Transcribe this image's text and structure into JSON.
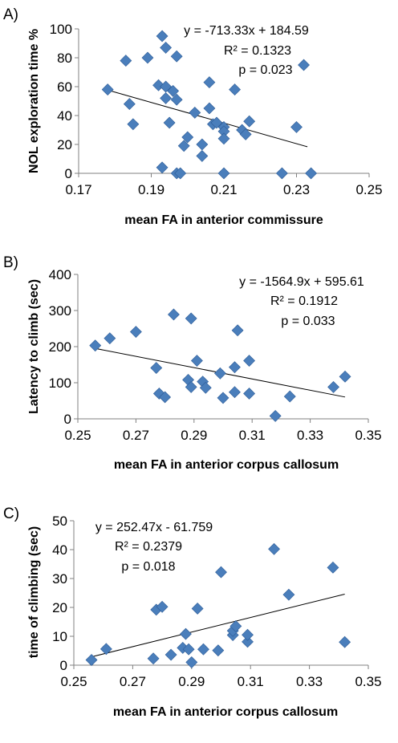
{
  "colors": {
    "marker": "#4a7ebb",
    "marker_stroke": "#2c5b96",
    "axis": "#808080",
    "trendline": "#000000",
    "text": "#000000"
  },
  "chart_data": [
    {
      "type": "scatter",
      "panel_label": "A)",
      "xlabel": "mean FA in anterior commissure",
      "ylabel": "NOL exploration time %",
      "xlim": [
        0.17,
        0.25
      ],
      "ylim": [
        0,
        100
      ],
      "xticks": [
        0.17,
        0.19,
        0.21,
        0.23,
        0.25
      ],
      "yticks": [
        0,
        20,
        40,
        60,
        80,
        100
      ],
      "xtick_labels": [
        "0.17",
        "0.19",
        "0.21",
        "0.23",
        "0.25"
      ],
      "ytick_labels": [
        "0",
        "20",
        "40",
        "60",
        "80",
        "100"
      ],
      "grid": false,
      "annotations": [
        "y = -713.33x + 184.59",
        "R² = 0.1323",
        "p = 0.023"
      ],
      "trendline": {
        "slope": -713.33,
        "intercept": 184.59,
        "x_range": [
          0.178,
          0.233
        ]
      },
      "points": [
        {
          "x": 0.178,
          "y": 58
        },
        {
          "x": 0.183,
          "y": 78
        },
        {
          "x": 0.184,
          "y": 48
        },
        {
          "x": 0.185,
          "y": 34
        },
        {
          "x": 0.189,
          "y": 80
        },
        {
          "x": 0.192,
          "y": 61
        },
        {
          "x": 0.193,
          "y": 4
        },
        {
          "x": 0.193,
          "y": 95
        },
        {
          "x": 0.194,
          "y": 87
        },
        {
          "x": 0.194,
          "y": 60
        },
        {
          "x": 0.194,
          "y": 52
        },
        {
          "x": 0.195,
          "y": 35
        },
        {
          "x": 0.196,
          "y": 57
        },
        {
          "x": 0.197,
          "y": 81
        },
        {
          "x": 0.197,
          "y": 51
        },
        {
          "x": 0.197,
          "y": 0
        },
        {
          "x": 0.198,
          "y": 0
        },
        {
          "x": 0.199,
          "y": 19
        },
        {
          "x": 0.2,
          "y": 25
        },
        {
          "x": 0.202,
          "y": 42
        },
        {
          "x": 0.204,
          "y": 12
        },
        {
          "x": 0.204,
          "y": 20
        },
        {
          "x": 0.206,
          "y": 45
        },
        {
          "x": 0.206,
          "y": 63
        },
        {
          "x": 0.207,
          "y": 34
        },
        {
          "x": 0.208,
          "y": 35
        },
        {
          "x": 0.21,
          "y": 32
        },
        {
          "x": 0.21,
          "y": 29
        },
        {
          "x": 0.21,
          "y": 0
        },
        {
          "x": 0.21,
          "y": 24
        },
        {
          "x": 0.213,
          "y": 58
        },
        {
          "x": 0.215,
          "y": 30
        },
        {
          "x": 0.216,
          "y": 27
        },
        {
          "x": 0.217,
          "y": 36
        },
        {
          "x": 0.226,
          "y": 0
        },
        {
          "x": 0.23,
          "y": 32
        },
        {
          "x": 0.232,
          "y": 75
        },
        {
          "x": 0.234,
          "y": 0
        }
      ]
    },
    {
      "type": "scatter",
      "panel_label": "B)",
      "xlabel": "mean FA in anterior corpus callosum",
      "ylabel": "Latency to climb (sec)",
      "xlim": [
        0.25,
        0.35
      ],
      "ylim": [
        0,
        400
      ],
      "xticks": [
        0.25,
        0.27,
        0.29,
        0.31,
        0.33,
        0.35
      ],
      "yticks": [
        0,
        100,
        200,
        300,
        400
      ],
      "xtick_labels": [
        "0.25",
        "0.27",
        "0.29",
        "0.31",
        "0.33",
        "0.35"
      ],
      "ytick_labels": [
        "0",
        "100",
        "200",
        "300",
        "400"
      ],
      "grid": false,
      "annotations": [
        "y = -1564.9x + 595.61",
        "R² = 0.1912",
        "p = 0.033"
      ],
      "trendline": {
        "slope": -1564.9,
        "intercept": 595.61,
        "x_range": [
          0.256,
          0.342
        ]
      },
      "points": [
        {
          "x": 0.256,
          "y": 203
        },
        {
          "x": 0.261,
          "y": 223
        },
        {
          "x": 0.27,
          "y": 241
        },
        {
          "x": 0.277,
          "y": 141
        },
        {
          "x": 0.278,
          "y": 70
        },
        {
          "x": 0.28,
          "y": 60
        },
        {
          "x": 0.283,
          "y": 289
        },
        {
          "x": 0.288,
          "y": 108
        },
        {
          "x": 0.289,
          "y": 278
        },
        {
          "x": 0.289,
          "y": 88
        },
        {
          "x": 0.291,
          "y": 161
        },
        {
          "x": 0.293,
          "y": 103
        },
        {
          "x": 0.294,
          "y": 86
        },
        {
          "x": 0.299,
          "y": 126
        },
        {
          "x": 0.3,
          "y": 58
        },
        {
          "x": 0.304,
          "y": 143
        },
        {
          "x": 0.304,
          "y": 74
        },
        {
          "x": 0.305,
          "y": 245
        },
        {
          "x": 0.309,
          "y": 161
        },
        {
          "x": 0.309,
          "y": 70
        },
        {
          "x": 0.318,
          "y": 8
        },
        {
          "x": 0.323,
          "y": 62
        },
        {
          "x": 0.338,
          "y": 88
        },
        {
          "x": 0.342,
          "y": 117
        }
      ]
    },
    {
      "type": "scatter",
      "panel_label": "C)",
      "xlabel": "mean FA in anterior corpus callosum",
      "ylabel": "time of climbing (sec)",
      "xlim": [
        0.25,
        0.35
      ],
      "ylim": [
        0,
        50
      ],
      "xticks": [
        0.25,
        0.27,
        0.29,
        0.31,
        0.33,
        0.35
      ],
      "yticks": [
        0,
        10,
        20,
        30,
        40,
        50
      ],
      "xtick_labels": [
        "0.25",
        "0.27",
        "0.29",
        "0.31",
        "0.33",
        "0.35"
      ],
      "ytick_labels": [
        "0",
        "10",
        "20",
        "30",
        "40",
        "50"
      ],
      "grid": false,
      "annotations": [
        "y = 252.47x - 61.759",
        "R² = 0.2379",
        "p = 0.018"
      ],
      "trendline": {
        "slope": 252.47,
        "intercept": -61.759,
        "x_range": [
          0.256,
          0.342
        ]
      },
      "points": [
        {
          "x": 0.256,
          "y": 1.8
        },
        {
          "x": 0.261,
          "y": 5.6
        },
        {
          "x": 0.277,
          "y": 2.3
        },
        {
          "x": 0.278,
          "y": 19.2
        },
        {
          "x": 0.28,
          "y": 20.2
        },
        {
          "x": 0.283,
          "y": 3.6
        },
        {
          "x": 0.287,
          "y": 6
        },
        {
          "x": 0.288,
          "y": 10.8
        },
        {
          "x": 0.289,
          "y": 5.5
        },
        {
          "x": 0.29,
          "y": 1
        },
        {
          "x": 0.292,
          "y": 19.6
        },
        {
          "x": 0.294,
          "y": 5.5
        },
        {
          "x": 0.299,
          "y": 5.1
        },
        {
          "x": 0.3,
          "y": 32.2
        },
        {
          "x": 0.304,
          "y": 10.4
        },
        {
          "x": 0.304,
          "y": 11.9
        },
        {
          "x": 0.305,
          "y": 13.5
        },
        {
          "x": 0.309,
          "y": 8.1
        },
        {
          "x": 0.309,
          "y": 10.5
        },
        {
          "x": 0.318,
          "y": 40.2
        },
        {
          "x": 0.323,
          "y": 24.4
        },
        {
          "x": 0.338,
          "y": 33.8
        },
        {
          "x": 0.342,
          "y": 8
        }
      ]
    }
  ]
}
